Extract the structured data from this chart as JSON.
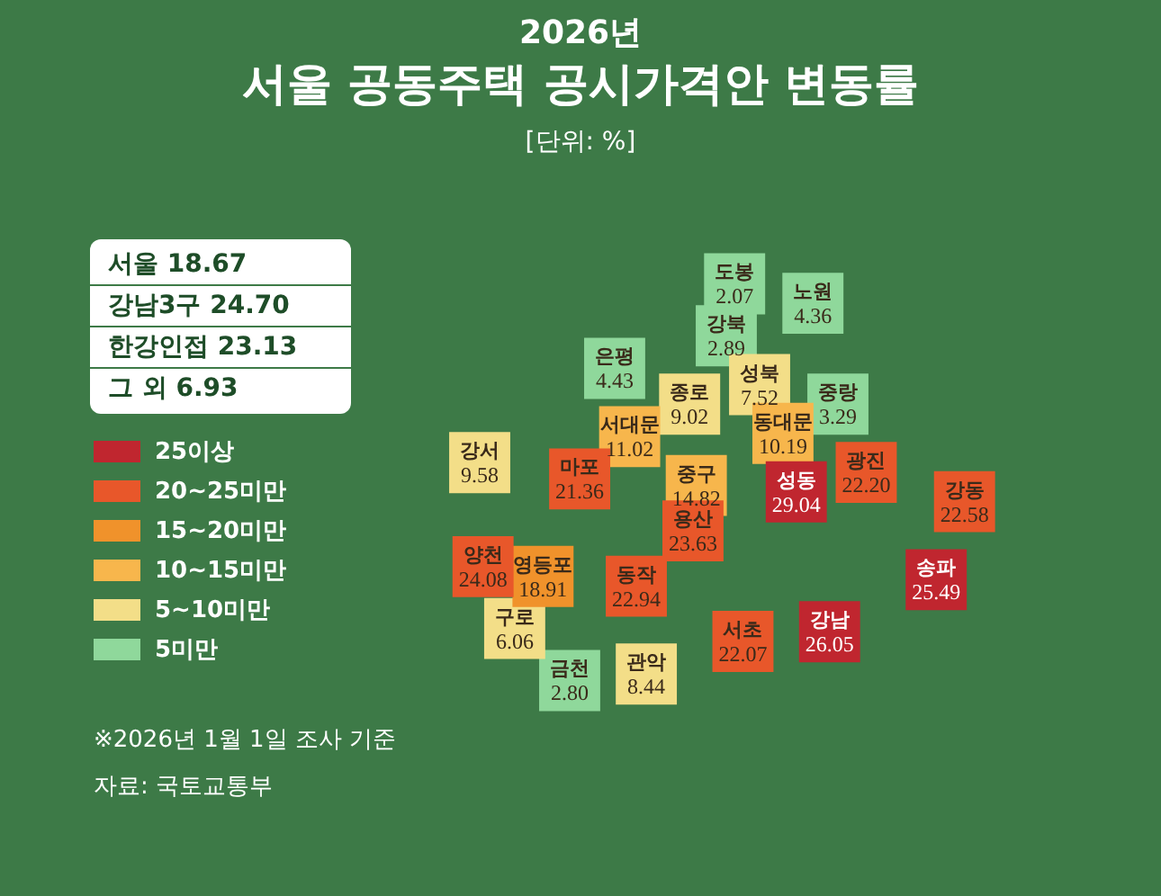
{
  "chart_data": {
    "type": "other",
    "subtitle": "2026년",
    "title": "서울 공동주택 공시가격안 변동률",
    "annotations": [
      "[단위: %]",
      "서울 18.67",
      "강남3구 24.70",
      "한강인접 23.13",
      "그 외 6.93",
      "※2026년 1월 1일 조사 기준",
      "자료: 국토교통부"
    ],
    "categories": [
      "도봉",
      "노원",
      "강북",
      "은평",
      "중랑",
      "성북",
      "종로",
      "동대문",
      "서대문",
      "중구",
      "강서",
      "마포",
      "용산",
      "성동",
      "광진",
      "강동",
      "송파",
      "강남",
      "서초",
      "동작",
      "관악",
      "금천",
      "구로",
      "영등포",
      "양천"
    ],
    "series": [
      {
        "name": "25이상",
        "color": "#c0262f",
        "values": [
          null,
          null,
          null,
          null,
          null,
          null,
          null,
          null,
          null,
          null,
          null,
          null,
          null,
          29.04,
          null,
          null,
          25.49,
          26.05,
          null,
          null,
          null,
          null,
          null,
          null,
          null
        ]
      },
      {
        "name": "20~25미만",
        "color": "#e8572a",
        "values": [
          null,
          null,
          null,
          null,
          null,
          null,
          null,
          null,
          null,
          null,
          null,
          21.36,
          23.63,
          null,
          22.2,
          22.58,
          null,
          null,
          22.07,
          22.94,
          null,
          null,
          null,
          null,
          24.08
        ],
        "value_labels": [
          null,
          null,
          null,
          null,
          null,
          null,
          null,
          null,
          null,
          null,
          null,
          "21.36",
          "23.63",
          null,
          "22.20",
          "22.58",
          null,
          null,
          "22.07",
          "22.94",
          null,
          null,
          null,
          null,
          "24.08"
        ]
      },
      {
        "name": "15~20미만",
        "color": "#f0922b",
        "values": [
          null,
          null,
          null,
          null,
          null,
          null,
          null,
          null,
          null,
          null,
          null,
          null,
          null,
          null,
          null,
          null,
          null,
          null,
          null,
          null,
          null,
          null,
          null,
          18.91,
          null
        ]
      },
      {
        "name": "10~15미만",
        "color": "#f7b64c",
        "values": [
          null,
          null,
          null,
          null,
          null,
          null,
          null,
          10.19,
          11.02,
          14.82,
          null,
          null,
          null,
          null,
          null,
          null,
          null,
          null,
          null,
          null,
          null,
          null,
          null,
          null,
          null
        ]
      },
      {
        "name": "5~10미만",
        "color": "#f3de88",
        "values": [
          null,
          null,
          null,
          null,
          null,
          7.52,
          9.02,
          null,
          null,
          null,
          9.58,
          null,
          null,
          null,
          null,
          null,
          null,
          null,
          null,
          null,
          8.44,
          null,
          6.06,
          null,
          null
        ]
      },
      {
        "name": "5미만",
        "color": "#8fd89b",
        "values": [
          2.07,
          4.36,
          2.89,
          4.43,
          3.29,
          null,
          null,
          null,
          null,
          null,
          null,
          null,
          null,
          null,
          null,
          null,
          null,
          null,
          null,
          null,
          null,
          2.8,
          null,
          null,
          null
        ],
        "value_labels": [
          "2.07",
          "4.36",
          "2.89",
          "4.43",
          "3.29",
          null,
          null,
          null,
          null,
          null,
          null,
          null,
          null,
          null,
          null,
          null,
          null,
          null,
          null,
          null,
          null,
          "2.80",
          null,
          null,
          null
        ]
      }
    ],
    "data_labels": true,
    "legend": "left"
  }
}
